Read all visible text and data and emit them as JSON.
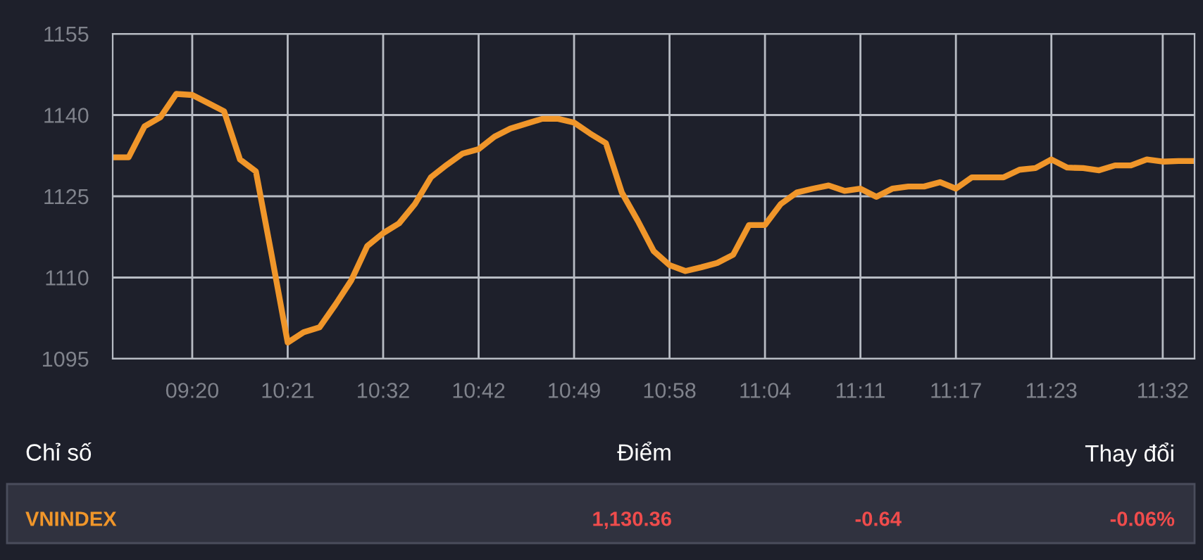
{
  "chart_data": {
    "type": "line",
    "categories": [
      null,
      null,
      null,
      null,
      null,
      "09:20",
      null,
      null,
      null,
      null,
      null,
      "10:21",
      null,
      null,
      null,
      null,
      null,
      "10:32",
      null,
      null,
      null,
      null,
      null,
      "10:42",
      null,
      null,
      null,
      null,
      null,
      "10:49",
      null,
      null,
      null,
      null,
      null,
      "10:58",
      null,
      null,
      null,
      null,
      null,
      "11:04",
      null,
      null,
      null,
      null,
      null,
      "11:11",
      null,
      null,
      null,
      null,
      null,
      "11:17",
      null,
      null,
      null,
      null,
      null,
      "11:23",
      null,
      null,
      null,
      null,
      null,
      null,
      "11:32",
      null,
      null
    ],
    "series": [
      {
        "color": "#f0962a",
        "values": [
          1132.2,
          1132.2,
          1137.9,
          1139.6,
          1143.9,
          1143.7,
          1142.2,
          1140.7,
          1131.8,
          1129.6,
          1114.0,
          1098.0,
          1099.9,
          1100.8,
          1105.0,
          1109.5,
          1115.8,
          1118.2,
          1120.0,
          1123.6,
          1128.5,
          1130.8,
          1132.9,
          1133.7,
          1136.0,
          1137.5,
          1138.4,
          1139.3,
          1139.3,
          1138.6,
          1136.6,
          1134.8,
          1125.7,
          1120.5,
          1114.9,
          1112.3,
          1111.2,
          1111.9,
          1112.7,
          1114.2,
          1119.7,
          1119.7,
          1123.6,
          1125.7,
          1126.4,
          1127.0,
          1126.0,
          1126.4,
          1124.9,
          1126.4,
          1126.8,
          1126.8,
          1127.6,
          1126.4,
          1128.5,
          1128.5,
          1128.5,
          1129.9,
          1130.2,
          1131.8,
          1130.3,
          1130.2,
          1129.8,
          1130.7,
          1130.7,
          1131.8,
          1131.4,
          1131.5,
          1131.5
        ]
      }
    ],
    "ylim": [
      1095,
      1155
    ],
    "yticks": [
      1095,
      1110,
      1125,
      1140,
      1155
    ],
    "grid": true,
    "legend": false,
    "marker": "none",
    "line_style": "solid",
    "annotations": [
      "Chỉ số",
      "Điểm",
      "Thay đổi",
      "VNINDEX",
      "1,130.36",
      "-0.64",
      "-0.06%"
    ]
  }
}
